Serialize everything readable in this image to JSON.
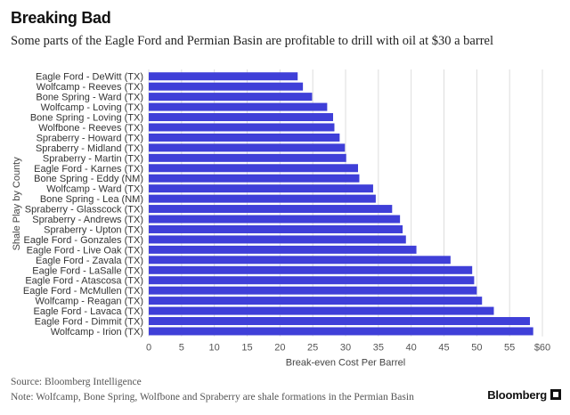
{
  "header": {
    "title": "Breaking Bad",
    "subtitle": "Some parts of the Eagle Ford and Permian Basin are profitable to drill with oil at $30 a barrel"
  },
  "footer": {
    "source": "Source: Bloomberg Intelligence",
    "note": "Note: Wolfcamp, Bone Spring, Wolfbone and Spraberry are shale formations in the Permian Basin",
    "logo": "Bloomberg"
  },
  "colors": {
    "bar": "#3f3fd8",
    "grid": "#dddddd"
  },
  "chart_data": {
    "type": "bar",
    "orientation": "horizontal",
    "title": "Breaking Bad",
    "subtitle": "Some parts of the Eagle Ford and Permian Basin are profitable to drill with oil at $30 a barrel",
    "xlabel": "Break-even Cost Per Barrel",
    "ylabel": "Shale Play by County",
    "xlim": [
      0,
      60
    ],
    "xticks": [
      "0",
      "5",
      "10",
      "15",
      "20",
      "25",
      "30",
      "35",
      "40",
      "45",
      "50",
      "55",
      "$60"
    ],
    "grid": "vertical",
    "categories": [
      "Eagle Ford - DeWitt (TX)",
      "Wolfcamp - Reeves (TX)",
      "Bone Spring - Ward (TX)",
      "Wolfcamp - Loving (TX)",
      "Bone Spring - Loving (TX)",
      "Wolfbone - Reeves (TX)",
      "Spraberry - Howard (TX)",
      "Spraberry - Midland (TX)",
      "Spraberry - Martin (TX)",
      "Eagle Ford - Karnes (TX)",
      "Bone Spring - Eddy (NM)",
      "Wolfcamp - Ward (TX)",
      "Bone Spring - Lea (NM)",
      "Spraberry - Glasscock (TX)",
      "Spraberry - Andrews (TX)",
      "Spraberry - Upton (TX)",
      "Eagle Ford - Gonzales (TX)",
      "Eagle Ford - Live Oak (TX)",
      "Eagle Ford - Zavala (TX)",
      "Eagle Ford - LaSalle (TX)",
      "Eagle Ford - Atascosa (TX)",
      "Eagle Ford - McMullen (TX)",
      "Wolfcamp - Reagan (TX)",
      "Eagle Ford - Lavaca (TX)",
      "Eagle Ford - Dimmit (TX)",
      "Wolfcamp - Irion (TX)"
    ],
    "values": [
      22.7,
      23.5,
      24.9,
      27.2,
      28.1,
      28.3,
      29.1,
      29.9,
      30.1,
      31.9,
      32.1,
      34.2,
      34.6,
      37.1,
      38.3,
      38.7,
      39.2,
      40.8,
      46.0,
      49.3,
      49.6,
      50.0,
      50.8,
      52.6,
      58.1,
      58.6
    ]
  }
}
